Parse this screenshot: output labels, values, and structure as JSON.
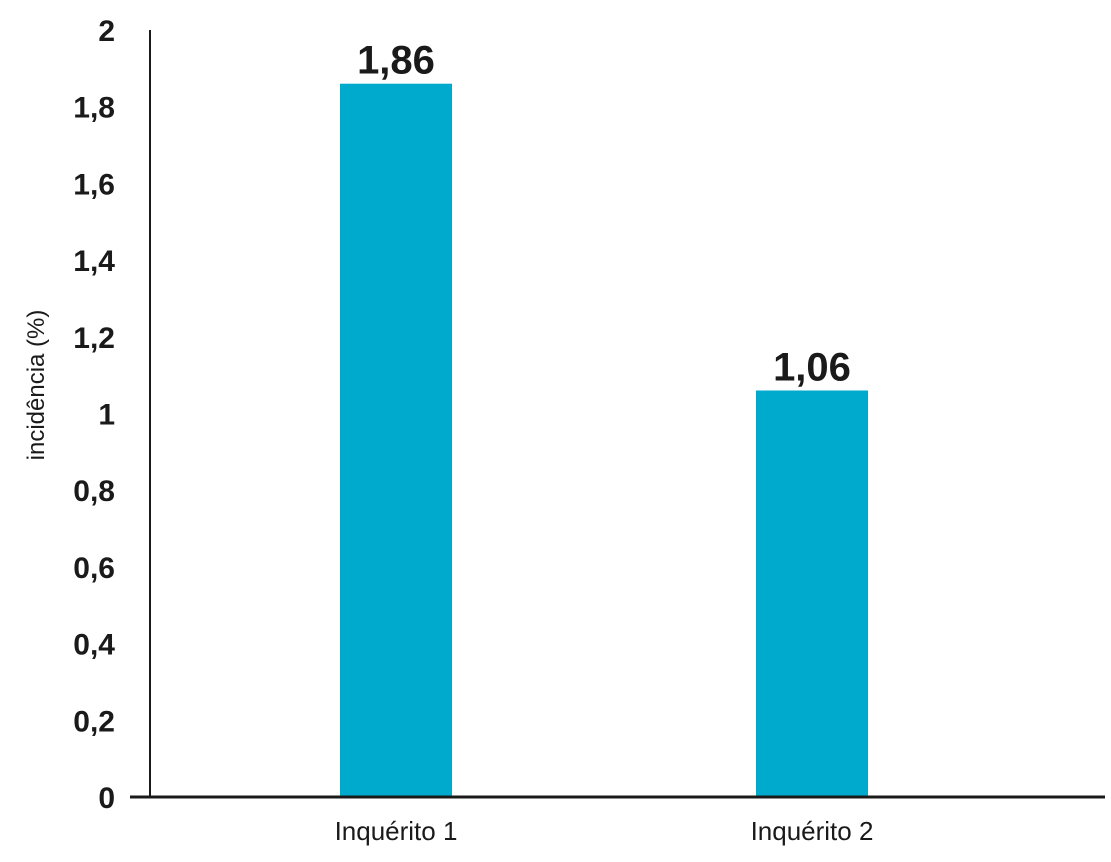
{
  "chart_data": {
    "type": "bar",
    "title": "",
    "xlabel": "",
    "ylabel": "incidência (%)",
    "categories": [
      "Inquérito 1",
      "Inquérito 2"
    ],
    "values": [
      1.86,
      1.06
    ],
    "value_labels": [
      "1,86",
      "1,06"
    ],
    "ylim": [
      0,
      2
    ],
    "yticks": [
      0,
      0.2,
      0.4,
      0.6,
      0.8,
      1,
      1.2,
      1.4,
      1.6,
      1.8,
      2
    ],
    "ytick_labels": [
      "0",
      "0,2",
      "0,4",
      "0,6",
      "0,8",
      "1",
      "1,2",
      "1,4",
      "1,6",
      "1,8",
      "2"
    ],
    "grid": false,
    "legend": "none",
    "bar_color": "#00aacd",
    "axis_color": "#1a1a1a"
  }
}
